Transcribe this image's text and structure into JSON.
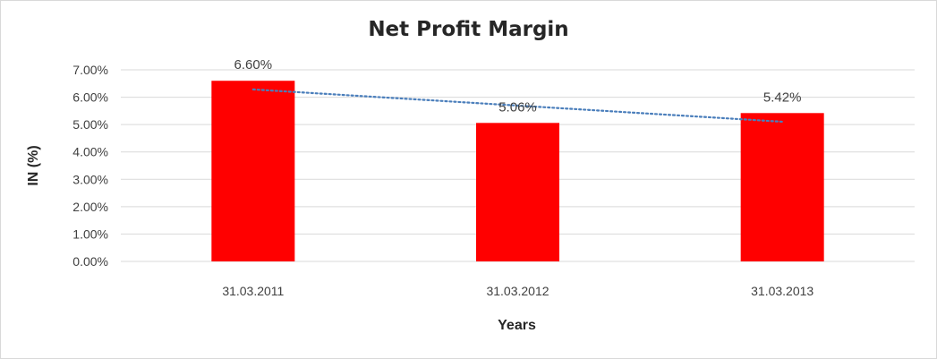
{
  "chart_data": {
    "type": "bar",
    "title": "Net Profit Margin",
    "xlabel": "Years",
    "ylabel": "IN (%)",
    "categories": [
      "31.03.2011",
      "31.03.2012",
      "31.03.2013"
    ],
    "values": [
      6.6,
      5.06,
      5.42
    ],
    "value_labels": [
      "6.60%",
      "5.06%",
      "5.42%"
    ],
    "ylim": [
      0,
      7
    ],
    "yticks": [
      0,
      1,
      2,
      3,
      4,
      5,
      6,
      7
    ],
    "ytick_labels": [
      "0.00%",
      "1.00%",
      "2.00%",
      "3.00%",
      "4.00%",
      "5.00%",
      "6.00%",
      "7.00%"
    ],
    "grid": true,
    "trendline": {
      "type": "linear",
      "style": "dotted"
    },
    "colors": {
      "bar": "#ff0000",
      "trendline": "#4a7ebb",
      "grid": "#d9d9d9"
    }
  }
}
